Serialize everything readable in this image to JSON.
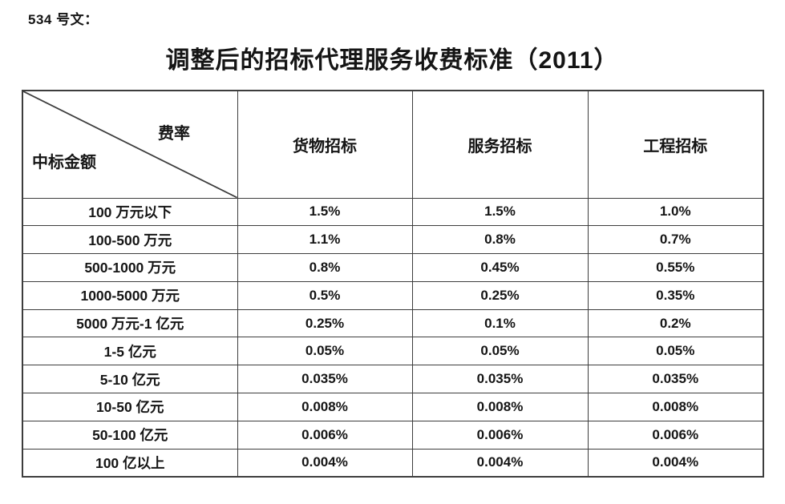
{
  "page": {
    "doc_label": "534 号文：",
    "title": "调整后的招标代理服务收费标准（2011）"
  },
  "table": {
    "corner": {
      "top_right": "费率",
      "bottom_left": "中标金额"
    },
    "columns": [
      "货物招标",
      "服务招标",
      "工程招标"
    ],
    "rows": [
      {
        "label": "100 万元以下",
        "values": [
          "1.5%",
          "1.5%",
          "1.0%"
        ]
      },
      {
        "label": "100-500 万元",
        "values": [
          "1.1%",
          "0.8%",
          "0.7%"
        ]
      },
      {
        "label": "500-1000 万元",
        "values": [
          "0.8%",
          "0.45%",
          "0.55%"
        ]
      },
      {
        "label": "1000-5000 万元",
        "values": [
          "0.5%",
          "0.25%",
          "0.35%"
        ]
      },
      {
        "label": "5000 万元-1 亿元",
        "values": [
          "0.25%",
          "0.1%",
          "0.2%"
        ]
      },
      {
        "label": "1-5 亿元",
        "values": [
          "0.05%",
          "0.05%",
          "0.05%"
        ]
      },
      {
        "label": "5-10 亿元",
        "values": [
          "0.035%",
          "0.035%",
          "0.035%"
        ]
      },
      {
        "label": "10-50 亿元",
        "values": [
          "0.008%",
          "0.008%",
          "0.008%"
        ]
      },
      {
        "label": "50-100 亿元",
        "values": [
          "0.006%",
          "0.006%",
          "0.006%"
        ]
      },
      {
        "label": "100 亿以上",
        "values": [
          "0.004%",
          "0.004%",
          "0.004%"
        ]
      }
    ]
  }
}
